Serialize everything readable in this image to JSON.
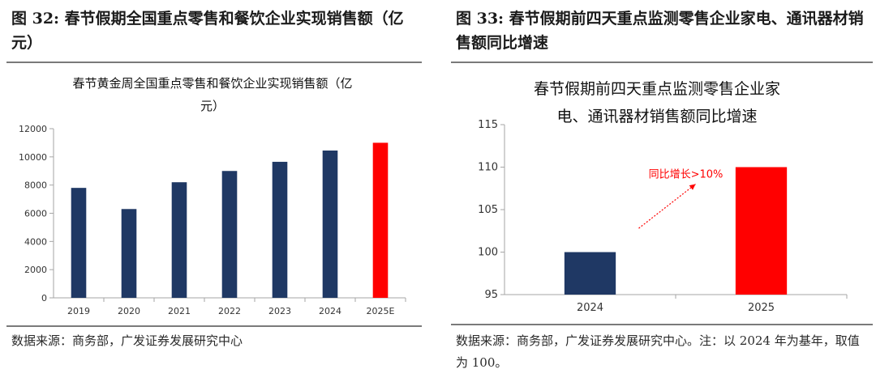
{
  "left": {
    "figure_title": "图 32: 春节假期全国重点零售和餐饮企业实现销售额（亿元）",
    "source": "数据来源：商务部，广发证券发展研究中心"
  },
  "right": {
    "figure_title": "图 33: 春节假期前四天重点监测零售企业家电、通讯器材销售额同比增速",
    "source": "数据来源：商务部，广发证券发展研究中心。注：以 2024 年为基年，取值为 100。"
  },
  "chart_data": [
    {
      "type": "bar",
      "title": "春节黄金周全国重点零售和餐饮企业实现销售额（亿元）",
      "title_lines": [
        "春节黄金周全国重点零售和餐饮企业实现销售额（亿",
        "元）"
      ],
      "categories": [
        "2019",
        "2020",
        "2021",
        "2022",
        "2023",
        "2024",
        "2025E"
      ],
      "values": [
        7800,
        6300,
        8200,
        9000,
        9650,
        10450,
        11000
      ],
      "ylim": [
        0,
        12000
      ],
      "yticks": [
        0,
        2000,
        4000,
        6000,
        8000,
        10000,
        12000
      ],
      "xlabel": "",
      "ylabel": "",
      "grid": false,
      "legend": "none",
      "colors": [
        "#1f3864",
        "#1f3864",
        "#1f3864",
        "#1f3864",
        "#1f3864",
        "#1f3864",
        "#ff0000"
      ]
    },
    {
      "type": "bar",
      "title": "春节假期前四天重点监测零售企业家电、通讯器材销售额同比增速",
      "title_lines": [
        "春节假期前四天重点监测零售企业家",
        "电、通讯器材销售额同比增速"
      ],
      "categories": [
        "2024",
        "2025"
      ],
      "values": [
        100,
        110
      ],
      "ylim": [
        95,
        115
      ],
      "yticks": [
        95,
        100,
        105,
        110,
        115
      ],
      "xlabel": "",
      "ylabel": "",
      "grid": false,
      "legend": "none",
      "colors": [
        "#1f3864",
        "#ff0000"
      ],
      "annotation": "同比增长>10%"
    }
  ]
}
